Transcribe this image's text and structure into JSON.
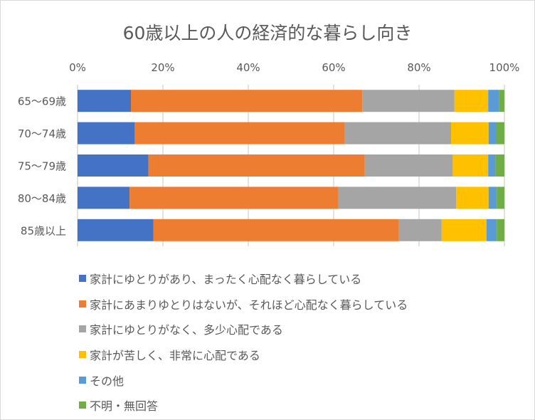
{
  "chart_data": {
    "type": "bar",
    "orientation": "horizontal",
    "stacked": "percent",
    "title": "60歳以上の人の経済的な暮らし向き",
    "xlabel": "",
    "ylabel": "",
    "xlim": [
      0,
      100
    ],
    "xticks": [
      "0%",
      "20%",
      "40%",
      "60%",
      "80%",
      "100%"
    ],
    "grid": true,
    "legend_position": "bottom",
    "categories": [
      "65～69歳",
      "70～74歳",
      "75～79歳",
      "80～84歳",
      "85歳以上"
    ],
    "series": [
      {
        "name": "家計にゆとりがあり、まったく心配なく暮らしている",
        "color": "#4472c4",
        "values": [
          12.5,
          13.4,
          16.6,
          12.2,
          17.8
        ]
      },
      {
        "name": "家計にあまりゆとりはないが、それほど心配なく暮らしている",
        "color": "#ed7d31",
        "values": [
          54.2,
          49.2,
          50.7,
          48.9,
          57.5
        ]
      },
      {
        "name": "家計にゆとりがなく、多少心配である",
        "color": "#a5a5a5",
        "values": [
          21.6,
          24.9,
          20.6,
          27.6,
          10.0
        ]
      },
      {
        "name": "家計が苦しく、非常に心配である",
        "color": "#ffc000",
        "values": [
          7.9,
          8.8,
          8.3,
          7.6,
          10.5
        ]
      },
      {
        "name": "その他",
        "color": "#5b9bd5",
        "values": [
          2.5,
          1.7,
          1.7,
          1.9,
          2.4
        ]
      },
      {
        "name": "不明・無回答",
        "color": "#70ad47",
        "values": [
          1.3,
          2.0,
          2.1,
          1.8,
          1.8
        ]
      }
    ]
  }
}
